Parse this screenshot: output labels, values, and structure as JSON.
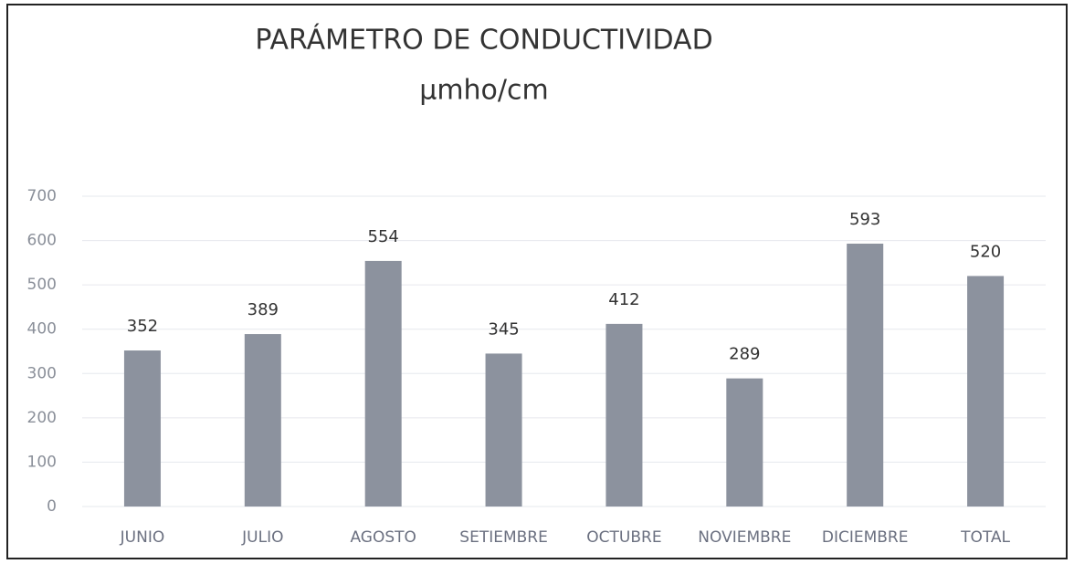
{
  "chart_data": {
    "type": "bar",
    "title": "PARÁMETRO DE CONDUCTIVIDAD",
    "subtitle": "µmho/cm",
    "categories": [
      "JUNIO",
      "JULIO",
      "AGOSTO",
      "SETIEMBRE",
      "OCTUBRE",
      "NOVIEMBRE",
      "DICIEMBRE",
      "TOTAL"
    ],
    "values": [
      352,
      389,
      554,
      345,
      412,
      289,
      593,
      520
    ],
    "color": "#8c929e",
    "ylim": [
      0,
      700
    ],
    "yticks": [
      0,
      100,
      200,
      300,
      400,
      500,
      600,
      700
    ],
    "grid": true
  }
}
